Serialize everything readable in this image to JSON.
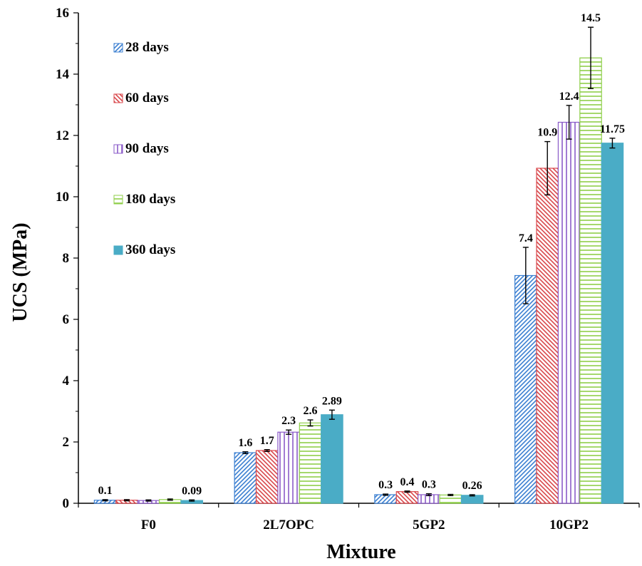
{
  "chart_data": {
    "type": "bar",
    "title": "",
    "xlabel": "Mixture",
    "ylabel": "UCS (MPa)",
    "ylim": [
      0,
      16
    ],
    "yticks": [
      0,
      2,
      4,
      6,
      8,
      10,
      12,
      14,
      16
    ],
    "categories": [
      "F0",
      "2L7OPC",
      "5GP2",
      "10GP2"
    ],
    "grid": false,
    "legend_position": "top-left",
    "series": [
      {
        "name": "28 days",
        "color": "#3b7fd1",
        "pattern": "diagonal-up",
        "values": [
          0.1,
          1.65,
          0.28,
          7.43
        ],
        "errors": [
          0.02,
          0.03,
          0.02,
          0.92
        ],
        "labels": [
          "0.1",
          "1.6",
          "0.3",
          "7.4"
        ]
      },
      {
        "name": "60 days",
        "color": "#d9474b",
        "pattern": "diagonal-down",
        "values": [
          0.1,
          1.72,
          0.38,
          10.93
        ],
        "errors": [
          0.02,
          0.03,
          0.02,
          0.87
        ],
        "labels": [
          "",
          "1.7",
          "0.4",
          "10.9"
        ]
      },
      {
        "name": "90 days",
        "color": "#8a5ac8",
        "pattern": "vertical",
        "values": [
          0.09,
          2.32,
          0.28,
          12.43
        ],
        "errors": [
          0.02,
          0.07,
          0.03,
          0.55
        ],
        "labels": [
          "",
          "2.3",
          "0.3",
          "12.4"
        ]
      },
      {
        "name": "180 days",
        "color": "#8fcf4a",
        "pattern": "horizontal",
        "values": [
          0.12,
          2.62,
          0.27,
          14.53
        ],
        "errors": [
          0.02,
          0.1,
          0.02,
          1.0
        ],
        "labels": [
          "",
          "2.6",
          "",
          "14.5"
        ]
      },
      {
        "name": "360 days",
        "color": "#4aacc6",
        "pattern": "solid",
        "values": [
          0.09,
          2.89,
          0.26,
          11.75
        ],
        "errors": [
          0.02,
          0.15,
          0.02,
          0.16
        ],
        "labels": [
          "0.09",
          "2.89",
          "0.26",
          "11.75"
        ]
      }
    ]
  }
}
